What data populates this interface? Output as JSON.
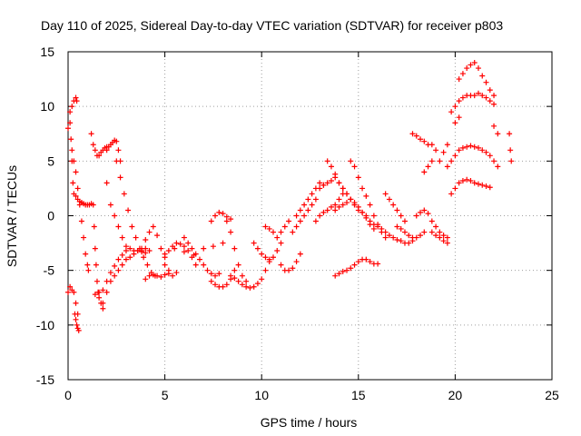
{
  "chart_data": {
    "type": "scatter",
    "title": "Day 110 of 2025, Sidereal Day-to-day VTEC variation (SDTVAR) for receiver p803",
    "xlabel": "GPS time / hours",
    "ylabel": "SDTVAR / TECUs",
    "xlim": [
      0,
      25
    ],
    "ylim": [
      -15,
      15
    ],
    "xticks": [
      0,
      5,
      10,
      15,
      20,
      25
    ],
    "yticks": [
      -15,
      -10,
      -5,
      0,
      5,
      10,
      15
    ],
    "grid": true,
    "marker": "+",
    "color": "#ff0000",
    "series": [
      {
        "x": [
          0.0,
          0.1,
          0.2,
          0.3,
          0.4,
          0.45
        ],
        "y": [
          8.0,
          9.5,
          10.0,
          10.5,
          10.8,
          10.5
        ]
      },
      {
        "x": [
          0.0,
          0.1,
          0.2,
          0.3,
          0.4,
          0.5
        ],
        "y": [
          -7.0,
          -6.5,
          -6.8,
          -7.0,
          -8.0,
          -9.0
        ]
      },
      {
        "x": [
          0.35,
          0.4,
          0.45,
          0.5,
          0.55
        ],
        "y": [
          -9.0,
          -9.5,
          -10.0,
          -10.3,
          -10.5
        ]
      },
      {
        "x": [
          0.1,
          0.15,
          0.2,
          0.25,
          0.3,
          0.4,
          0.5,
          0.6,
          0.7,
          0.8,
          0.9,
          1.0,
          1.1,
          1.2
        ],
        "y": [
          8.5,
          7.0,
          5.0,
          3.0,
          2.0,
          1.8,
          1.5,
          1.3,
          1.2,
          1.1,
          1.0,
          1.0,
          1.0,
          1.1
        ]
      },
      {
        "x": [
          0.2,
          0.3,
          0.4,
          0.5,
          0.6,
          0.7,
          0.8,
          0.9,
          1.0,
          1.05
        ],
        "y": [
          6.0,
          5.0,
          4.0,
          2.5,
          1.0,
          -0.5,
          -2.0,
          -3.5,
          -4.5,
          -5.0
        ]
      },
      {
        "x": [
          1.2,
          1.3,
          1.4,
          1.5,
          1.6,
          1.7,
          1.8,
          1.9,
          2.0
        ],
        "y": [
          7.5,
          6.5,
          6.0,
          5.5,
          5.5,
          5.8,
          6.0,
          6.2,
          6.3
        ]
      },
      {
        "x": [
          1.3,
          1.35,
          1.4,
          1.45,
          1.5,
          1.55,
          1.6,
          1.7,
          1.8
        ],
        "y": [
          1.0,
          -1.0,
          -3.0,
          -4.5,
          -6.0,
          -7.0,
          -7.5,
          -8.0,
          -8.5
        ]
      },
      {
        "x": [
          1.4,
          1.6,
          1.8,
          2.0,
          2.2,
          2.4,
          2.6,
          2.8,
          3.0
        ],
        "y": [
          -7.2,
          -7.0,
          -6.8,
          -6.0,
          -5.2,
          -4.6,
          -4.0,
          -3.6,
          -3.2
        ]
      },
      {
        "x": [
          1.8,
          2.0,
          2.2,
          2.4,
          2.6,
          2.8,
          3.0,
          3.2,
          3.4,
          3.6,
          3.8,
          4.0,
          4.2
        ],
        "y": [
          -8.0,
          -7.0,
          -6.0,
          -5.5,
          -5.0,
          -4.5,
          -4.0,
          -3.8,
          -3.5,
          -3.2,
          -3.0,
          -3.0,
          -3.2
        ]
      },
      {
        "x": [
          2.0,
          2.1,
          2.2,
          2.3,
          2.4,
          2.5,
          2.6,
          2.7
        ],
        "y": [
          6.0,
          6.3,
          6.5,
          6.7,
          6.9,
          6.8,
          6.0,
          5.0
        ]
      },
      {
        "x": [
          2.0,
          2.2,
          2.4,
          2.6,
          2.8,
          3.0,
          3.2,
          3.4,
          3.6,
          3.8,
          4.0
        ],
        "y": [
          3.0,
          1.0,
          0.0,
          -1.0,
          -2.0,
          -2.8,
          -3.0,
          -3.2,
          -3.2,
          -3.3,
          -3.4
        ]
      },
      {
        "x": [
          2.5,
          2.7,
          2.9,
          3.1,
          3.3,
          3.5,
          3.7,
          3.9,
          4.1,
          4.3,
          4.5
        ],
        "y": [
          5.0,
          3.5,
          2.0,
          0.5,
          -1.0,
          -2.0,
          -3.0,
          -3.8,
          -4.5,
          -5.2,
          -5.5
        ]
      },
      {
        "x": [
          3.8,
          4.0,
          4.2,
          4.4,
          4.6,
          4.8,
          5.0,
          5.2,
          5.4,
          5.6
        ],
        "y": [
          -3.2,
          -2.2,
          -1.5,
          -1.0,
          -1.8,
          -3.0,
          -4.5,
          -5.3,
          -5.5,
          -5.2
        ]
      },
      {
        "x": [
          4.0,
          4.2,
          4.4,
          4.6,
          4.8,
          5.0,
          5.2
        ],
        "y": [
          -5.8,
          -5.5,
          -5.4,
          -5.5,
          -5.6,
          -5.4,
          -5.0
        ]
      },
      {
        "x": [
          5.0,
          5.2,
          5.4,
          5.6,
          5.8,
          6.0,
          6.2,
          6.4,
          6.6
        ],
        "y": [
          -3.8,
          -3.2,
          -2.8,
          -2.5,
          -2.6,
          -2.8,
          -3.2,
          -3.8,
          -4.5
        ]
      },
      {
        "x": [
          5.0,
          5.5,
          6.0,
          6.5,
          7.0,
          7.5,
          8.0
        ],
        "y": [
          -3.5,
          -3.0,
          -3.3,
          -3.6,
          -3.0,
          -2.8,
          -2.5
        ]
      },
      {
        "x": [
          6.0,
          6.2,
          6.4,
          6.6,
          6.8,
          7.0,
          7.2,
          7.4,
          7.6,
          7.8
        ],
        "y": [
          -2.0,
          -2.5,
          -3.0,
          -3.5,
          -4.0,
          -4.5,
          -5.0,
          -5.3,
          -5.5,
          -5.3
        ]
      },
      {
        "x": [
          7.4,
          7.6,
          7.8,
          8.0,
          8.2,
          8.4,
          8.6
        ],
        "y": [
          -6.0,
          -6.3,
          -6.5,
          -6.5,
          -6.3,
          -5.8,
          -5.0
        ]
      },
      {
        "x": [
          7.4,
          7.6,
          7.8,
          8.0,
          8.2,
          8.4
        ],
        "y": [
          -0.5,
          0.0,
          0.3,
          0.2,
          -0.1,
          -0.3
        ]
      },
      {
        "x": [
          8.2,
          8.4,
          8.6,
          8.8,
          9.0,
          9.2
        ],
        "y": [
          -0.5,
          -1.5,
          -3.0,
          -4.5,
          -5.5,
          -6.0
        ]
      },
      {
        "x": [
          8.4,
          8.6,
          8.8,
          9.0,
          9.2,
          9.4,
          9.6,
          9.8,
          10.0,
          10.2,
          10.4
        ],
        "y": [
          -5.5,
          -5.7,
          -6.0,
          -6.3,
          -6.5,
          -6.6,
          -6.5,
          -6.2,
          -5.8,
          -5.0,
          -4.2
        ]
      },
      {
        "x": [
          9.6,
          9.8,
          10.0,
          10.2,
          10.4,
          10.6,
          10.8,
          11.0
        ],
        "y": [
          -2.5,
          -3.0,
          -3.5,
          -3.8,
          -4.0,
          -3.8,
          -3.2,
          -2.5
        ]
      },
      {
        "x": [
          10.2,
          10.4,
          10.6,
          10.8,
          11.0,
          11.2,
          11.4
        ],
        "y": [
          -1.0,
          -1.2,
          -1.5,
          -2.0,
          -1.5,
          -1.0,
          -0.5
        ]
      },
      {
        "x": [
          11.0,
          11.2,
          11.4,
          11.6,
          11.8,
          12.0
        ],
        "y": [
          -4.5,
          -5.0,
          -5.0,
          -4.8,
          -4.2,
          -3.5
        ]
      },
      {
        "x": [
          11.6,
          11.8,
          12.0,
          12.2,
          12.4,
          12.6,
          12.8
        ],
        "y": [
          -1.5,
          -1.0,
          -0.5,
          0.0,
          0.5,
          1.0,
          1.5
        ]
      },
      {
        "x": [
          11.8,
          12.0,
          12.2,
          12.4,
          12.6,
          12.8,
          13.0,
          13.2
        ],
        "y": [
          0.0,
          0.5,
          1.0,
          1.5,
          2.0,
          2.5,
          3.0,
          2.8
        ]
      },
      {
        "x": [
          12.8,
          13.0,
          13.2,
          13.4,
          13.6,
          13.8,
          14.0,
          14.2
        ],
        "y": [
          -0.5,
          0.0,
          0.3,
          0.5,
          0.8,
          1.0,
          1.5,
          2.0
        ]
      },
      {
        "x": [
          13.0,
          13.2,
          13.4,
          13.6,
          13.8,
          14.0,
          14.2,
          14.4,
          14.6,
          14.8
        ],
        "y": [
          2.5,
          2.8,
          3.0,
          3.2,
          3.5,
          3.0,
          2.5,
          2.0,
          1.5,
          1.0
        ]
      },
      {
        "x": [
          13.4,
          13.6,
          13.8,
          14.0,
          14.2,
          14.4,
          14.6,
          14.8,
          15.0,
          15.2,
          15.4
        ],
        "y": [
          5.0,
          4.5,
          3.8,
          3.0,
          2.5,
          2.0,
          1.5,
          1.0,
          0.5,
          0.3,
          0.0
        ]
      },
      {
        "x": [
          14.6,
          14.8,
          15.0,
          15.2,
          15.4,
          15.6,
          15.8,
          16.0,
          16.2,
          16.4
        ],
        "y": [
          5.0,
          4.5,
          3.5,
          2.5,
          1.8,
          1.0,
          0.0,
          -0.8,
          -1.5,
          -2.0
        ]
      },
      {
        "x": [
          13.8,
          14.0,
          14.2,
          14.4,
          14.6,
          14.8,
          15.0,
          15.2,
          15.4,
          15.6,
          15.8
        ],
        "y": [
          0.5,
          0.8,
          1.0,
          1.2,
          1.5,
          1.2,
          0.8,
          0.3,
          -0.2,
          -0.8,
          -1.2
        ]
      },
      {
        "x": [
          13.8,
          14.0,
          14.2,
          14.4,
          14.6,
          14.8,
          15.0,
          15.2,
          15.4,
          15.6,
          15.8,
          16.0
        ],
        "y": [
          -5.5,
          -5.3,
          -5.1,
          -5.0,
          -4.8,
          -4.5,
          -4.2,
          -4.0,
          -4.0,
          -4.2,
          -4.4,
          -4.4
        ]
      },
      {
        "x": [
          15.6,
          15.8,
          16.0,
          16.2,
          16.4,
          16.6,
          16.8,
          17.0,
          17.2,
          17.4,
          17.6,
          17.8
        ],
        "y": [
          -0.5,
          -0.8,
          -1.0,
          -1.2,
          -1.5,
          -1.8,
          -2.0,
          -2.2,
          -2.3,
          -2.5,
          -2.5,
          -2.3
        ]
      },
      {
        "x": [
          16.4,
          16.6,
          16.8,
          17.0,
          17.2,
          17.4
        ],
        "y": [
          2.0,
          1.5,
          1.0,
          0.5,
          0.0,
          -0.5
        ]
      },
      {
        "x": [
          17.0,
          17.2,
          17.4,
          17.6,
          17.8,
          18.0,
          18.2,
          18.4
        ],
        "y": [
          -1.0,
          -1.2,
          -1.5,
          -1.8,
          -2.0,
          -2.0,
          -1.8,
          -1.5
        ]
      },
      {
        "x": [
          17.8,
          18.0,
          18.2,
          18.4,
          18.6,
          18.8,
          19.0
        ],
        "y": [
          7.5,
          7.3,
          7.0,
          6.8,
          6.5,
          6.5,
          6.0
        ]
      },
      {
        "x": [
          18.0,
          18.2,
          18.4,
          18.6,
          18.8,
          19.0,
          19.2,
          19.4,
          19.6
        ],
        "y": [
          0.0,
          0.3,
          0.5,
          0.2,
          -0.5,
          -1.0,
          -1.5,
          -1.8,
          -2.0
        ]
      },
      {
        "x": [
          18.4,
          18.6,
          18.8
        ],
        "y": [
          4.0,
          4.5,
          5.0
        ]
      },
      {
        "x": [
          18.8,
          19.0,
          19.2,
          19.4,
          19.6
        ],
        "y": [
          -1.5,
          -1.8,
          -2.0,
          -2.3,
          -2.5
        ]
      },
      {
        "x": [
          19.2,
          19.4,
          19.6
        ],
        "y": [
          5.0,
          5.8,
          6.5
        ]
      },
      {
        "x": [
          19.6,
          19.8,
          20.0,
          20.2,
          20.4,
          20.6,
          20.8,
          21.0,
          21.2,
          21.4,
          21.6,
          21.8,
          22.0,
          22.2
        ],
        "y": [
          4.5,
          5.0,
          5.5,
          6.0,
          6.2,
          6.3,
          6.4,
          6.3,
          6.2,
          6.0,
          5.8,
          5.5,
          5.0,
          4.5
        ]
      },
      {
        "x": [
          19.8,
          20.0,
          20.2,
          20.4,
          20.6,
          20.8,
          21.0,
          21.2,
          21.4,
          21.6,
          21.8
        ],
        "y": [
          2.0,
          2.5,
          3.0,
          3.2,
          3.3,
          3.2,
          3.0,
          2.9,
          2.8,
          2.7,
          2.6
        ]
      },
      {
        "x": [
          19.8,
          20.0,
          20.2,
          20.4,
          20.6,
          20.8,
          21.0,
          21.2,
          21.4,
          21.6,
          21.8,
          22.0
        ],
        "y": [
          9.5,
          10.0,
          10.5,
          10.8,
          11.0,
          11.0,
          11.0,
          11.2,
          11.0,
          10.8,
          10.5,
          10.2
        ]
      },
      {
        "x": [
          20.2,
          20.4,
          20.6,
          20.8,
          21.0,
          21.2,
          21.4,
          21.6,
          21.8,
          22.0
        ],
        "y": [
          12.5,
          13.0,
          13.5,
          13.8,
          14.0,
          13.5,
          12.8,
          12.2,
          11.5,
          11.0
        ]
      },
      {
        "x": [
          20.0,
          20.2
        ],
        "y": [
          8.5,
          9.0
        ]
      },
      {
        "x": [
          22.0,
          22.2
        ],
        "y": [
          8.2,
          7.5
        ]
      },
      {
        "x": [
          22.8,
          22.85,
          22.9
        ],
        "y": [
          7.5,
          6.0,
          5.0
        ]
      }
    ]
  }
}
